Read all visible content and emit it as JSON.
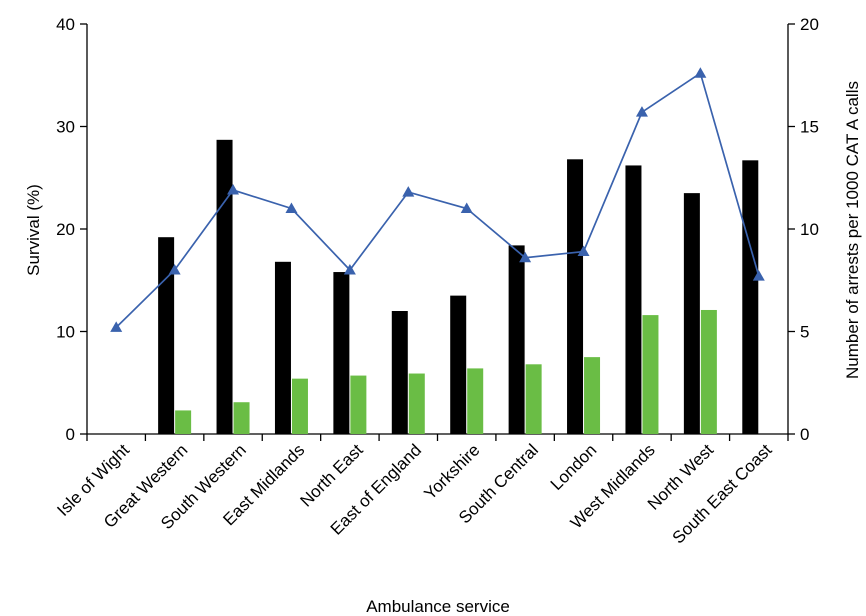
{
  "chart_data": {
    "type": "bar",
    "xlabel": "Ambulance service",
    "ylabel": "Survival (%)",
    "y2label": "Number of arrests per 1000 CAT A calls",
    "ylim": [
      0,
      40
    ],
    "y2lim": [
      0,
      20
    ],
    "yticks": [
      "0",
      "10",
      "20",
      "30",
      "40"
    ],
    "y2ticks": [
      "0",
      "5",
      "10",
      "15",
      "20"
    ],
    "grid": false,
    "categories": [
      "Isle of Wight",
      "Great Western",
      "South Western",
      "East Midlands",
      "North East",
      "East of England",
      "Yorkshire",
      "South Central",
      "London",
      "West Midlands",
      "North West",
      "South East Coast"
    ],
    "series": [
      {
        "type": "bar",
        "axis": "left",
        "color": "#000000",
        "values": [
          null,
          19.2,
          28.7,
          16.8,
          15.8,
          12.0,
          13.5,
          18.4,
          26.8,
          26.2,
          23.5,
          26.7
        ]
      },
      {
        "type": "bar",
        "axis": "left",
        "color": "#6abd45",
        "values": [
          null,
          2.3,
          3.1,
          5.4,
          5.7,
          5.9,
          6.4,
          6.8,
          7.5,
          11.6,
          12.1,
          null
        ]
      },
      {
        "type": "line",
        "axis": "right",
        "color": "#3a62ad",
        "marker": "triangle",
        "values": [
          5.2,
          8.0,
          11.9,
          11.0,
          8.0,
          11.8,
          11.0,
          8.6,
          8.9,
          15.7,
          17.6,
          7.7
        ]
      }
    ]
  }
}
